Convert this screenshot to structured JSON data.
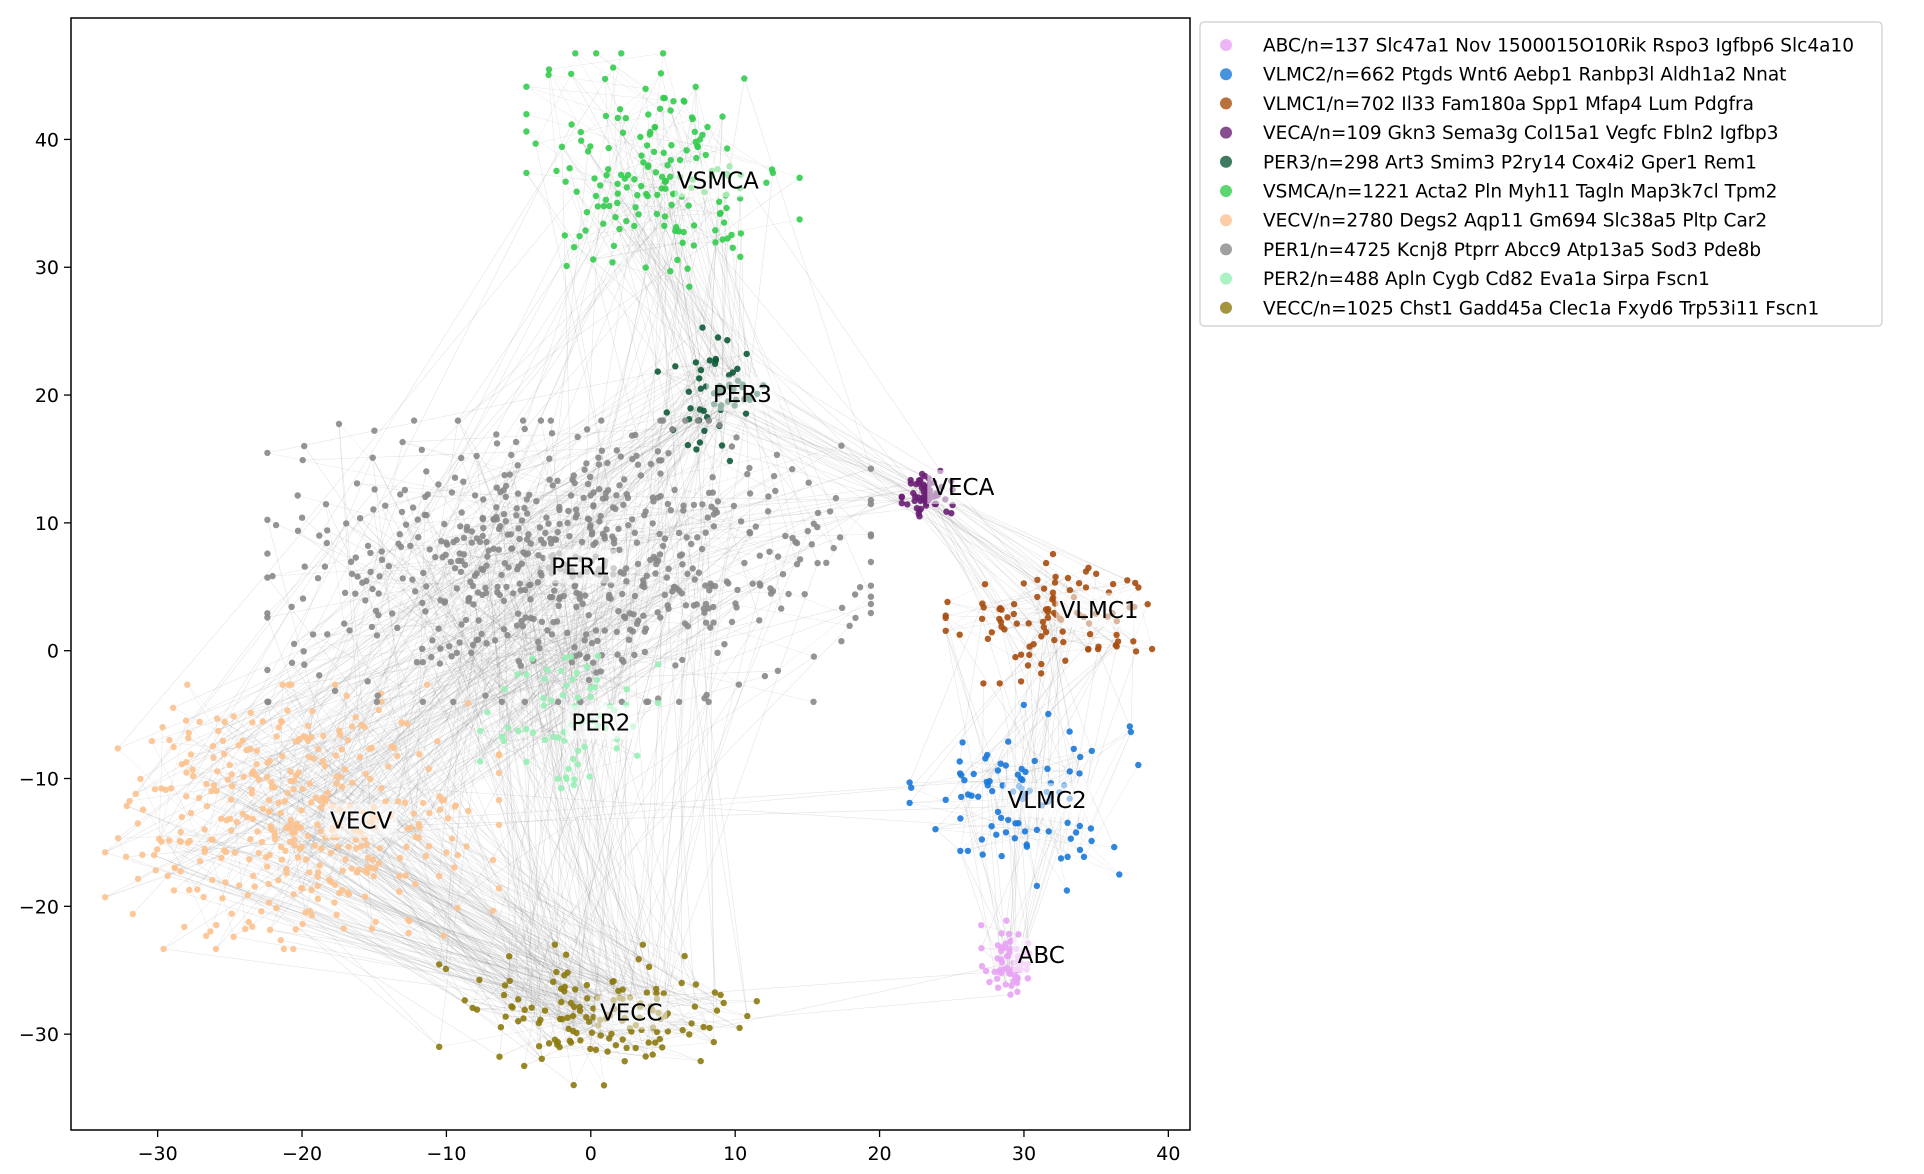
{
  "chart_data": {
    "type": "scatter",
    "title": "",
    "xlabel": "",
    "ylabel": "",
    "xlim": [
      -36,
      41.5
    ],
    "ylim": [
      -37.5,
      49.5
    ],
    "xticks": [
      -30,
      -20,
      -10,
      0,
      10,
      20,
      30,
      40
    ],
    "yticks": [
      -30,
      -20,
      -10,
      0,
      10,
      20,
      30,
      40
    ],
    "xtick_labels": [
      "−30",
      "−20",
      "−10",
      "0",
      "10",
      "20",
      "30",
      "40"
    ],
    "ytick_labels": [
      "−30",
      "−20",
      "−10",
      "0",
      "10",
      "20",
      "30",
      "40"
    ],
    "grid": false,
    "legend_position": "outside upper right",
    "edge_color": "#888888",
    "series": [
      {
        "name": "ABC/n=137 Slc47a1 Nov 1500015O10Rik Rspo3 Igfbp6 Slc4a10",
        "label": "ABC",
        "n": 137,
        "color": "#e8a3f4",
        "center": [
          28.8,
          -24.2
        ],
        "spread": [
          0.8,
          1.4
        ],
        "label_pos": [
          31.2,
          -23.8
        ]
      },
      {
        "name": "VLMC2/n=662 Ptgds Wnt6 Aebp1 Ranbp3l Aldh1a2 Nnat",
        "label": "VLMC2",
        "n": 662,
        "color": "#1a78d8",
        "center": [
          30.0,
          -11.5
        ],
        "spread": [
          3.6,
          3.3
        ],
        "label_pos": [
          31.6,
          -11.7
        ]
      },
      {
        "name": "VLMC1/n=702 Il33 Fam180a Spp1 Mfap4 Lum Pdgfra",
        "label": "VLMC1",
        "n": 702,
        "color": "#a74d0e",
        "center": [
          32.5,
          2.5
        ],
        "spread": [
          3.6,
          2.3
        ],
        "label_pos": [
          35.2,
          3.2
        ]
      },
      {
        "name": "VECA/n=109 Gkn3 Sema3g Col15a1 Vegfc Fbln2 Igfbp3",
        "label": "VECA",
        "n": 109,
        "color": "#6a1f74",
        "center": [
          23.3,
          12.3
        ],
        "spread": [
          0.8,
          0.9
        ],
        "label_pos": [
          25.8,
          12.8
        ]
      },
      {
        "name": "PER3/n=298 Art3 Smim3 P2ry14 Cox4i2 Gper1 Rem1",
        "label": "PER3",
        "n": 298,
        "color": "#0e5a38",
        "center": [
          8.6,
          20.0
        ],
        "spread": [
          1.8,
          2.4
        ],
        "label_pos": [
          10.5,
          20.1
        ]
      },
      {
        "name": "VSMCA/n=1221 Acta2 Pln Myh11 Tagln Map3k7cl Tpm2",
        "label": "VSMCA",
        "n": 1221,
        "color": "#33cc4d",
        "center": [
          5.0,
          37.5
        ],
        "spread": [
          4.3,
          4.2
        ],
        "label_pos": [
          8.8,
          36.8
        ]
      },
      {
        "name": "VECV/n=2780 Degs2 Aqp11 Gm694 Slc38a5 Pltp Car2",
        "label": "VECV",
        "n": 2780,
        "color": "#fcc28e",
        "center": [
          -20.0,
          -13.0
        ],
        "spread": [
          6.2,
          4.7
        ],
        "label_pos": [
          -15.9,
          -13.3
        ]
      },
      {
        "name": "PER1/n=4725 Kcnj8 Ptprr Abcc9 Atp13a5 Sod3 Pde8b",
        "label": "PER1",
        "n": 4725,
        "color": "#888888",
        "center": [
          -1.5,
          7.0
        ],
        "spread": [
          9.5,
          5.0
        ],
        "label_pos": [
          -0.7,
          6.6
        ]
      },
      {
        "name": "PER2/n=488 Apln Cygb Cd82 Eva1a Sirpa Fscn1",
        "label": "PER2",
        "n": 488,
        "color": "#96f0b4",
        "center": [
          -1.5,
          -5.0
        ],
        "spread": [
          2.8,
          2.8
        ],
        "label_pos": [
          0.7,
          -5.6
        ]
      },
      {
        "name": "VECC/n=1025 Chst1 Gadd45a Clec1a Fxyd6 Trp53i11 Fscn1",
        "label": "VECC",
        "n": 1025,
        "color": "#8c7a0e",
        "center": [
          0.5,
          -28.5
        ],
        "spread": [
          5.0,
          2.5
        ],
        "label_pos": [
          2.8,
          -28.3
        ]
      }
    ]
  }
}
